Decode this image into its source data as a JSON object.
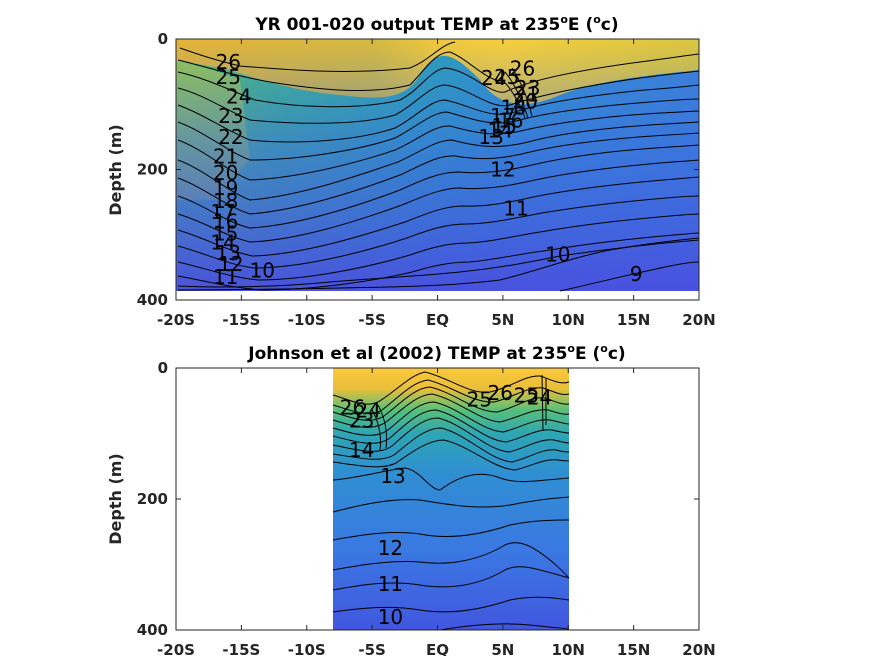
{
  "chart_data": [
    {
      "type": "contour",
      "title": "YR 001-020 output TEMP at 235",
      "title_sup1": "o",
      "title_mid": "E (",
      "title_sup2": "o",
      "title_end": "c)",
      "ylabel": "Depth (m)",
      "xlabel": "",
      "x_range": [
        -20,
        20
      ],
      "y_range": [
        0,
        400
      ],
      "y_reversed": true,
      "data_x_range": [
        -20,
        20
      ],
      "data_y_range": [
        0,
        385
      ],
      "xticks": [
        "-20S",
        "-15S",
        "-10S",
        "-5S",
        "EQ",
        "5N",
        "10N",
        "15N",
        "20N"
      ],
      "yticks": [
        "0",
        "200",
        "400"
      ],
      "colormap": "parula",
      "contour_levels": [
        9,
        10,
        11,
        12,
        13,
        14,
        15,
        16,
        17,
        18,
        19,
        20,
        21,
        22,
        23,
        24,
        25,
        26
      ],
      "contour_labels": [
        {
          "text": "26",
          "lat": -16.0,
          "depth": 35
        },
        {
          "text": "25",
          "lat": -16.0,
          "depth": 58
        },
        {
          "text": "24",
          "lat": -15.2,
          "depth": 88
        },
        {
          "text": "23",
          "lat": -15.8,
          "depth": 118
        },
        {
          "text": "22",
          "lat": -15.8,
          "depth": 150
        },
        {
          "text": "21",
          "lat": -16.2,
          "depth": 180
        },
        {
          "text": "20",
          "lat": -16.2,
          "depth": 205
        },
        {
          "text": "19",
          "lat": -16.2,
          "depth": 228
        },
        {
          "text": "18",
          "lat": -16.2,
          "depth": 248
        },
        {
          "text": "17",
          "lat": -16.4,
          "depth": 265
        },
        {
          "text": "16",
          "lat": -16.2,
          "depth": 280
        },
        {
          "text": "15",
          "lat": -16.2,
          "depth": 298
        },
        {
          "text": "14",
          "lat": -16.4,
          "depth": 312
        },
        {
          "text": "13",
          "lat": -16.0,
          "depth": 328
        },
        {
          "text": "12",
          "lat": -15.8,
          "depth": 345
        },
        {
          "text": "11",
          "lat": -16.2,
          "depth": 365
        },
        {
          "text": "10",
          "lat": -13.4,
          "depth": 355
        },
        {
          "text": "24",
          "lat": 4.3,
          "depth": 60
        },
        {
          "text": "25",
          "lat": 5.3,
          "depth": 58
        },
        {
          "text": "26",
          "lat": 6.5,
          "depth": 45
        },
        {
          "text": "23",
          "lat": 6.9,
          "depth": 75
        },
        {
          "text": "21",
          "lat": 6.8,
          "depth": 85
        },
        {
          "text": "20",
          "lat": 6.7,
          "depth": 96
        },
        {
          "text": "18",
          "lat": 5.8,
          "depth": 105
        },
        {
          "text": "17",
          "lat": 5.0,
          "depth": 118
        },
        {
          "text": "16",
          "lat": 5.6,
          "depth": 125
        },
        {
          "text": "15",
          "lat": 5.1,
          "depth": 133
        },
        {
          "text": "14",
          "lat": 4.8,
          "depth": 140
        },
        {
          "text": "13",
          "lat": 4.1,
          "depth": 150
        },
        {
          "text": "12",
          "lat": 5.0,
          "depth": 200
        },
        {
          "text": "11",
          "lat": 6.0,
          "depth": 260
        },
        {
          "text": "10",
          "lat": 9.2,
          "depth": 330
        },
        {
          "text": "9",
          "lat": 15.2,
          "depth": 360
        }
      ]
    },
    {
      "type": "contour",
      "title": "Johnson et al (2002) TEMP at 235",
      "title_sup1": "o",
      "title_mid": "E (",
      "title_sup2": "o",
      "title_end": "c)",
      "ylabel": "Depth (m)",
      "xlabel": "",
      "x_range": [
        -20,
        20
      ],
      "y_range": [
        0,
        400
      ],
      "y_reversed": true,
      "data_x_range": [
        -8,
        10
      ],
      "data_y_range": [
        0,
        400
      ],
      "xticks": [
        "-20S",
        "-15S",
        "-10S",
        "-5S",
        "EQ",
        "5N",
        "10N",
        "15N",
        "20N"
      ],
      "yticks": [
        "0",
        "200",
        "400"
      ],
      "colormap": "parula",
      "contour_levels": [
        10,
        11,
        12,
        13,
        14,
        15,
        16,
        17,
        18,
        19,
        20,
        21,
        22,
        23,
        24,
        25,
        26
      ],
      "contour_labels": [
        {
          "text": "26",
          "lat": -6.5,
          "depth": 60
        },
        {
          "text": "24",
          "lat": -5.3,
          "depth": 65
        },
        {
          "text": "23",
          "lat": -5.8,
          "depth": 80
        },
        {
          "text": "14",
          "lat": -5.8,
          "depth": 125
        },
        {
          "text": "13",
          "lat": -3.4,
          "depth": 165
        },
        {
          "text": "12",
          "lat": -3.6,
          "depth": 275
        },
        {
          "text": "11",
          "lat": -3.6,
          "depth": 330
        },
        {
          "text": "10",
          "lat": -3.6,
          "depth": 380
        },
        {
          "text": "25",
          "lat": 3.2,
          "depth": 48
        },
        {
          "text": "26",
          "lat": 4.8,
          "depth": 38
        },
        {
          "text": "25",
          "lat": 6.8,
          "depth": 42
        },
        {
          "text": "24",
          "lat": 7.8,
          "depth": 45
        }
      ]
    }
  ]
}
